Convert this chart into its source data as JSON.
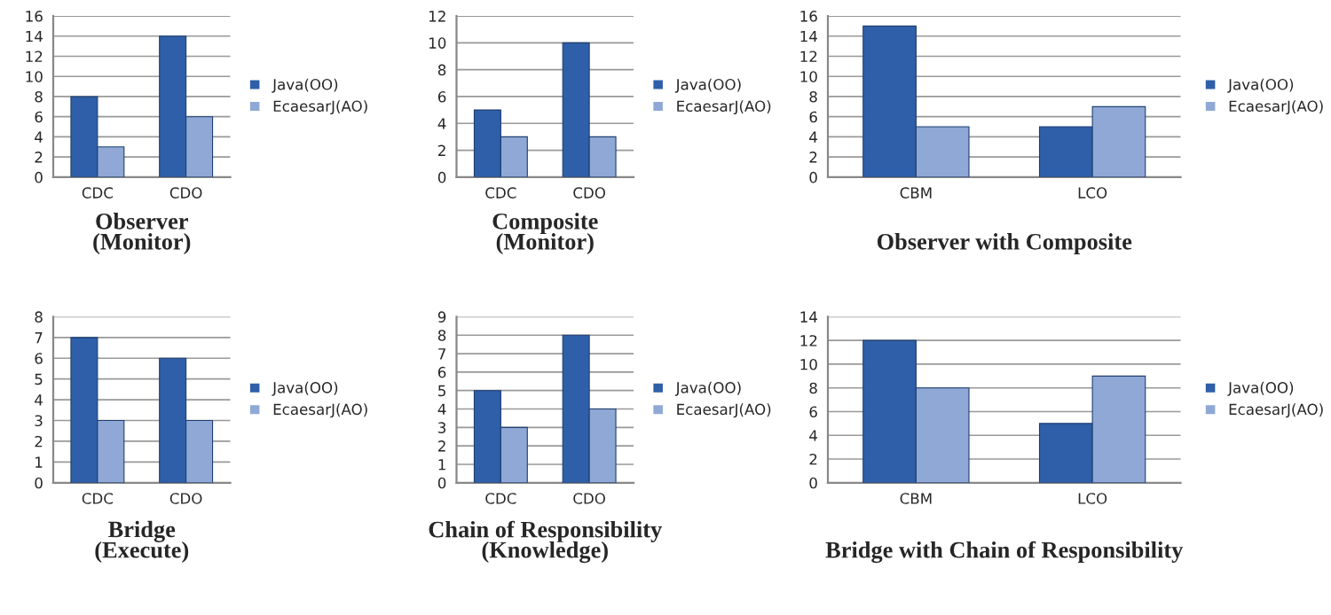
{
  "chart_data": [
    {
      "type": "bar",
      "title": "Observer\n(Monitor)",
      "categories": [
        "CDC",
        "CDO"
      ],
      "series": [
        {
          "name": "Java(OO)",
          "color": "#2e5fa8",
          "values": [
            8,
            14
          ]
        },
        {
          "name": "EcaesarJ(AO)",
          "color": "#8fa8d6",
          "values": [
            3,
            6
          ]
        }
      ],
      "ylim": [
        0,
        16
      ],
      "yticks": [
        0,
        2,
        4,
        6,
        8,
        10,
        12,
        14,
        16
      ],
      "grid": "y",
      "legend": "right"
    },
    {
      "type": "bar",
      "title": "Composite\n(Monitor)",
      "categories": [
        "CDC",
        "CDO"
      ],
      "series": [
        {
          "name": "Java(OO)",
          "color": "#2e5fa8",
          "values": [
            5,
            10
          ]
        },
        {
          "name": "EcaesarJ(AO)",
          "color": "#8fa8d6",
          "values": [
            3,
            3
          ]
        }
      ],
      "ylim": [
        0,
        12
      ],
      "yticks": [
        0,
        2,
        4,
        6,
        8,
        10,
        12
      ],
      "grid": "y",
      "legend": "right"
    },
    {
      "type": "bar",
      "title": "Observer with Composite",
      "categories": [
        "CBM",
        "LCO"
      ],
      "series": [
        {
          "name": "Java(OO)",
          "color": "#2e5fa8",
          "values": [
            15,
            5
          ]
        },
        {
          "name": "EcaesarJ(AO)",
          "color": "#8fa8d6",
          "values": [
            5,
            7
          ]
        }
      ],
      "ylim": [
        0,
        16
      ],
      "yticks": [
        0,
        2,
        4,
        6,
        8,
        10,
        12,
        14,
        16
      ],
      "grid": "y",
      "legend": "right"
    },
    {
      "type": "bar",
      "title": "Bridge\n(Execute)",
      "categories": [
        "CDC",
        "CDO"
      ],
      "series": [
        {
          "name": "Java(OO)",
          "color": "#2e5fa8",
          "values": [
            7,
            6
          ]
        },
        {
          "name": "EcaesarJ(AO)",
          "color": "#8fa8d6",
          "values": [
            3,
            3
          ]
        }
      ],
      "ylim": [
        0,
        8
      ],
      "yticks": [
        0,
        1,
        2,
        3,
        4,
        5,
        6,
        7,
        8
      ],
      "grid": "y",
      "legend": "right"
    },
    {
      "type": "bar",
      "title": "Chain of Responsibility\n(Knowledge)",
      "categories": [
        "CDC",
        "CDO"
      ],
      "series": [
        {
          "name": "Java(OO)",
          "color": "#2e5fa8",
          "values": [
            5,
            8
          ]
        },
        {
          "name": "EcaesarJ(AO)",
          "color": "#8fa8d6",
          "values": [
            3,
            4
          ]
        }
      ],
      "ylim": [
        0,
        9
      ],
      "yticks": [
        0,
        1,
        2,
        3,
        4,
        5,
        6,
        7,
        8,
        9
      ],
      "grid": "y",
      "legend": "right"
    },
    {
      "type": "bar",
      "title": "Bridge with Chain of Responsibility",
      "categories": [
        "CBM",
        "LCO"
      ],
      "series": [
        {
          "name": "Java(OO)",
          "color": "#2e5fa8",
          "values": [
            12,
            5
          ]
        },
        {
          "name": "EcaesarJ(AO)",
          "color": "#8fa8d6",
          "values": [
            8,
            9
          ]
        }
      ],
      "ylim": [
        0,
        14
      ],
      "yticks": [
        0,
        2,
        4,
        6,
        8,
        10,
        12,
        14
      ],
      "grid": "y",
      "legend": "right"
    }
  ]
}
